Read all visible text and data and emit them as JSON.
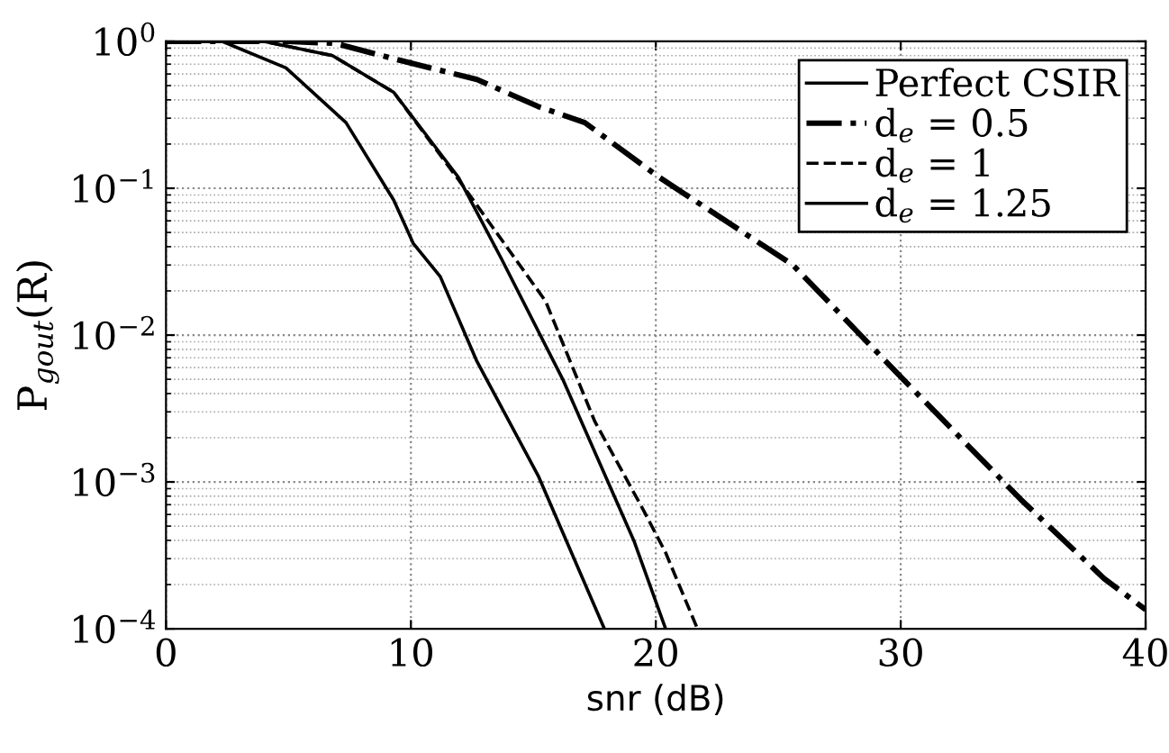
{
  "chart_data": {
    "type": "line",
    "xlabel": "snr (dB)",
    "ylabel": "P$_{gout}$(R)",
    "log": "y",
    "grid": true,
    "legend": "top right",
    "xlim": [
      0,
      40
    ],
    "xticks": [
      0,
      10,
      20,
      30,
      40
    ],
    "ylim": [
      0.0001,
      1
    ],
    "yticks": [
      {
        "value": 0.0001,
        "label": "10$^{−4}$"
      },
      {
        "value": 0.001,
        "label": "10$^{−3}$"
      },
      {
        "value": 0.01,
        "label": "10$^{−2}$"
      },
      {
        "value": 0.1,
        "label": "10$^{−1}$"
      },
      {
        "value": 1,
        "label": "10$^{0}$"
      }
    ],
    "series": [
      {
        "name": "Perfect CSIR",
        "color": "#000000",
        "line_style": "solid",
        "x": [
          0,
          2.3,
          4.9,
          7.35,
          9.3,
          10.1,
          11.2,
          12.7,
          15.2,
          17.9
        ],
        "values": [
          1,
          1,
          0.66,
          0.28,
          0.083,
          0.042,
          0.025,
          0.0066,
          0.0011,
          0.0001
        ]
      },
      {
        "name": "d$_{e}$ = 0.5",
        "color": "#000000",
        "line_style": "dashdot",
        "x": [
          0,
          5,
          6.9,
          9.6,
          12.7,
          15.2,
          17.1,
          20.1,
          25.6,
          30.1,
          34.9,
          38.3,
          40
        ],
        "values": [
          1,
          1,
          0.97,
          0.74,
          0.55,
          0.36,
          0.28,
          0.12,
          0.03,
          0.005,
          0.00076,
          0.00022,
          0.000135
        ]
      },
      {
        "name": "d$_{e}$ = 1",
        "color": "#000000",
        "line_style": "dashed",
        "x": [
          0,
          4,
          6.8,
          9.3,
          12.2,
          15.5,
          17.5,
          19.5,
          20.4,
          21.7
        ],
        "values": [
          1,
          1,
          0.8,
          0.45,
          0.1,
          0.017,
          0.0026,
          0.00064,
          0.00033,
          0.0001
        ]
      },
      {
        "name": "d$_{e}$ = 1.25",
        "color": "#000000",
        "line_style": "solid",
        "x": [
          0,
          4,
          6.8,
          9.3,
          11.95,
          13.7,
          16.2,
          19.1,
          20.4
        ],
        "values": [
          1,
          1,
          0.8,
          0.45,
          0.118,
          0.033,
          0.005,
          0.0004,
          0.0001
        ]
      }
    ]
  }
}
